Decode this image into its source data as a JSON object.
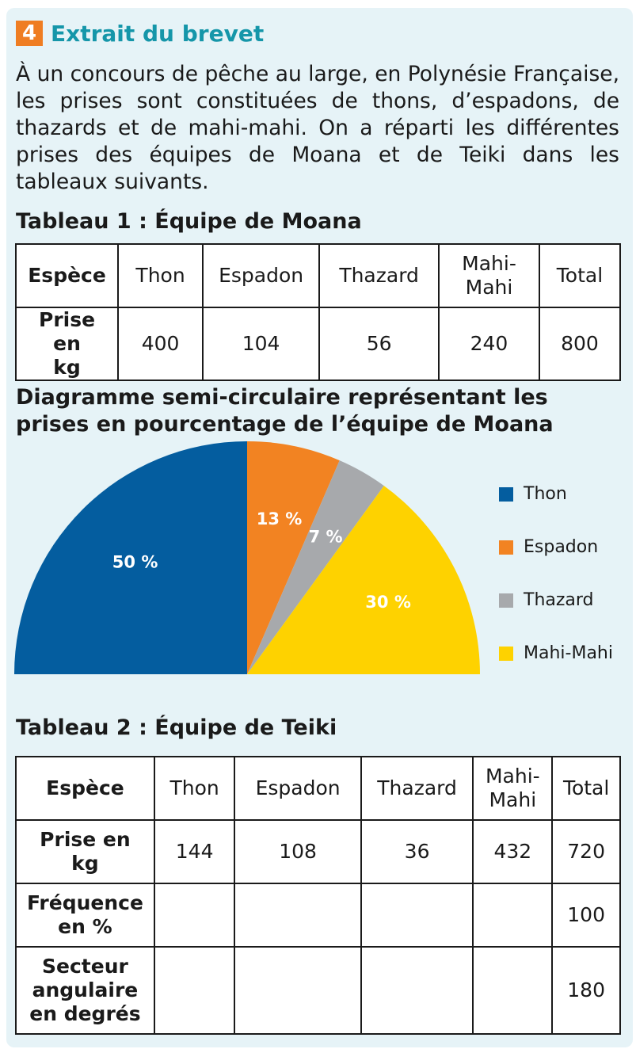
{
  "exercise": {
    "number": "4",
    "title": "Extrait du brevet"
  },
  "intro": "À un concours de pêche au large, en Polynésie Française, les prises sont constituées de thons, d’espadons, de thazards et de mahi-mahi. On a réparti les différentes prises des équipes de Moana et de Teiki dans les tableaux suivants.",
  "table1": {
    "title": "Tableau 1 : Équipe de Moana",
    "header": [
      "Espèce",
      "Thon",
      "Espadon",
      "Thazard",
      "Mahi-Mahi",
      "Total"
    ],
    "row": [
      "Prise en kg",
      "400",
      "104",
      "56",
      "240",
      "800"
    ]
  },
  "chart_title": "Diagramme semi-circulaire représentant les prises en pourcentage de l’équipe de Moana",
  "chart_data": {
    "type": "pie",
    "subtype": "semicircle",
    "categories": [
      "Thon",
      "Espadon",
      "Thazard",
      "Mahi-Mahi"
    ],
    "values": [
      50,
      13,
      7,
      30
    ],
    "labels": [
      "50 %",
      "13 %",
      "7 %",
      "30 %"
    ],
    "colors": [
      "#045d9f",
      "#f28322",
      "#a7a9ac",
      "#fed200"
    ],
    "legend_position": "right"
  },
  "table2": {
    "title": "Tableau 2 : Équipe de Teiki",
    "header": [
      "Espèce",
      "Thon",
      "Espadon",
      "Thazard",
      "Mahi-Mahi",
      "Total"
    ],
    "rows": [
      [
        "Prise en kg",
        "144",
        "108",
        "36",
        "432",
        "720"
      ],
      [
        "Fréquence en %",
        "",
        "",
        "",
        "",
        "100"
      ],
      [
        "Secteur angulaire en degrés",
        "",
        "",
        "",
        "",
        "180"
      ]
    ]
  },
  "colors": {
    "accent_orange": "#ef7d22",
    "accent_teal": "#1596a9",
    "card_background": "#e6f3f7"
  }
}
